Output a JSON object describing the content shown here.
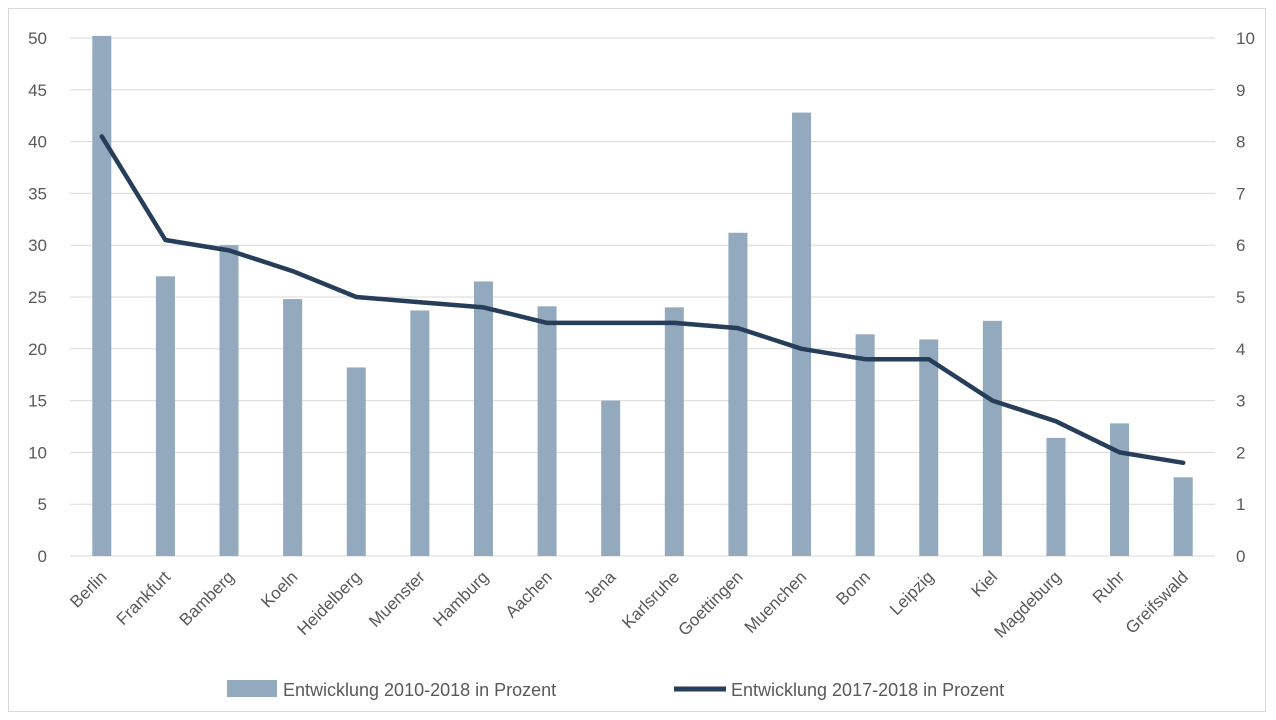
{
  "chart_data": {
    "type": "bar",
    "categories": [
      "Berlin",
      "Frankfurt",
      "Bamberg",
      "Koeln",
      "Heidelberg",
      "Muenster",
      "Hamburg",
      "Aachen",
      "Jena",
      "Karlsruhe",
      "Goettingen",
      "Muenchen",
      "Bonn",
      "Leipzig",
      "Kiel",
      "Magdeburg",
      "Ruhr",
      "Greifswald"
    ],
    "series": [
      {
        "name": "Entwicklung 2010-2018 in Prozent",
        "type": "bar",
        "axis": "left",
        "color": "#93a9bd",
        "values": [
          50.2,
          27.0,
          30.0,
          24.8,
          18.2,
          23.7,
          26.5,
          24.1,
          15.0,
          24.0,
          31.2,
          42.8,
          21.4,
          20.9,
          22.7,
          11.4,
          12.8,
          7.6
        ]
      },
      {
        "name": "Entwicklung 2017-2018 in Prozent",
        "type": "line",
        "axis": "right",
        "color": "#263e5a",
        "values": [
          8.1,
          6.1,
          5.9,
          5.5,
          5.0,
          4.9,
          4.8,
          4.5,
          4.5,
          4.5,
          4.4,
          4.0,
          3.8,
          3.8,
          3.0,
          2.6,
          2.0,
          1.8
        ]
      }
    ],
    "ylim_left": [
      0,
      50
    ],
    "ylim_right": [
      0,
      10
    ],
    "yticks_left": [
      "0",
      "5",
      "10",
      "15",
      "20",
      "25",
      "30",
      "35",
      "40",
      "45",
      "50"
    ],
    "yticks_right": [
      "0",
      "1",
      "2",
      "3",
      "4",
      "5",
      "6",
      "7",
      "8",
      "9",
      "10"
    ],
    "grid": true,
    "legend_position": "bottom"
  }
}
